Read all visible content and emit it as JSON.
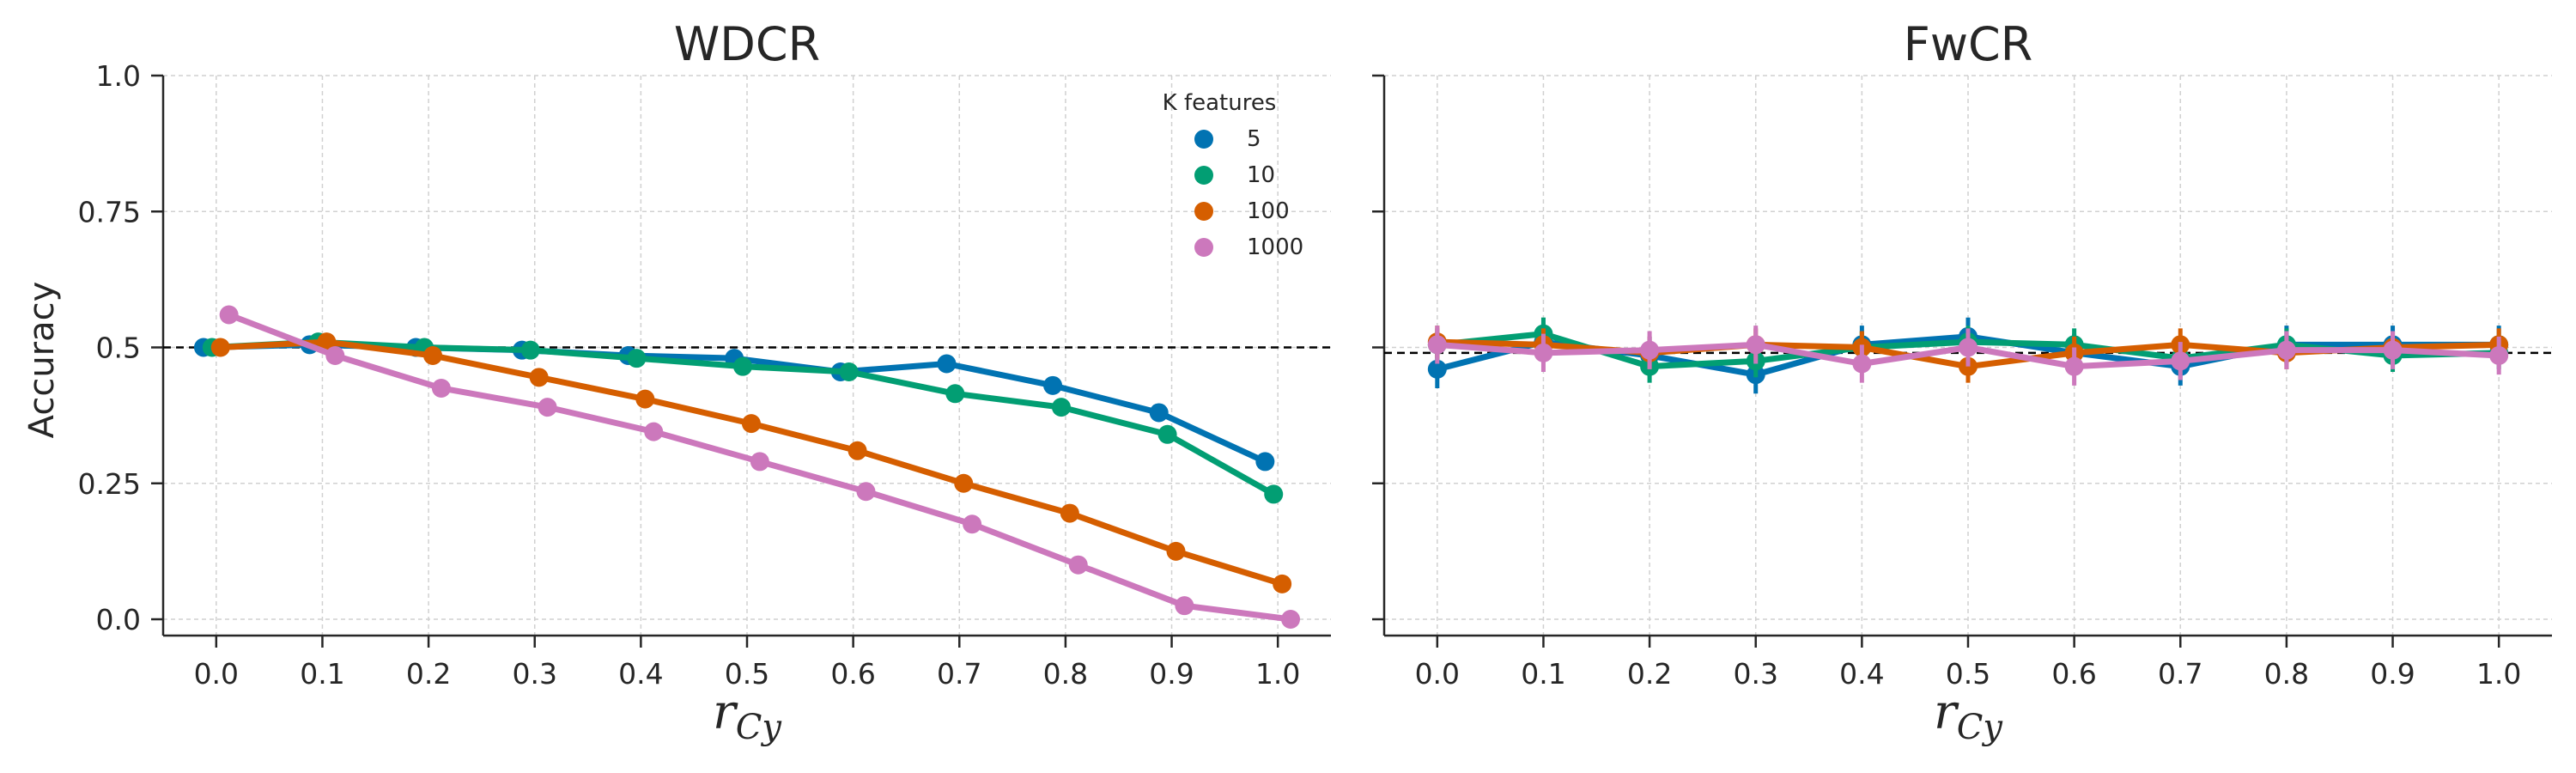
{
  "chart_data": [
    {
      "type": "line",
      "title": "WDCR",
      "xlabel": "r_Cy",
      "ylabel": "Accuracy",
      "x": [
        0.0,
        0.1,
        0.2,
        0.3,
        0.4,
        0.5,
        0.6,
        0.7,
        0.8,
        0.9,
        1.0
      ],
      "xlim": [
        -0.05,
        1.05
      ],
      "ylim": [
        -0.03,
        1.0
      ],
      "yticks": [
        0.0,
        0.25,
        0.5,
        0.75,
        1.0
      ],
      "ytick_labels": [
        "0.0",
        "0.25",
        "0.5",
        "0.75",
        "1.0"
      ],
      "xtick_labels": [
        "0.0",
        "0.1",
        "0.2",
        "0.3",
        "0.4",
        "0.5",
        "0.6",
        "0.7",
        "0.8",
        "0.9",
        "1.0"
      ],
      "reference_line": 0.5,
      "grid": true,
      "legend": {
        "title": "K features",
        "placement": "top-right"
      },
      "series": [
        {
          "name": "5",
          "color": "#0173b2",
          "values": [
            0.5,
            0.505,
            0.5,
            0.495,
            0.485,
            0.48,
            0.455,
            0.47,
            0.43,
            0.38,
            0.29
          ]
        },
        {
          "name": "10",
          "color": "#029e73",
          "values": [
            0.5,
            0.51,
            0.5,
            0.495,
            0.48,
            0.465,
            0.455,
            0.415,
            0.39,
            0.34,
            0.23
          ]
        },
        {
          "name": "100",
          "color": "#d55e00",
          "values": [
            0.5,
            0.51,
            0.485,
            0.445,
            0.405,
            0.36,
            0.31,
            0.25,
            0.195,
            0.125,
            0.065
          ]
        },
        {
          "name": "1000",
          "color": "#cc78bc",
          "values": [
            0.56,
            0.485,
            0.425,
            0.39,
            0.345,
            0.29,
            0.235,
            0.175,
            0.1,
            0.025,
            0.0
          ]
        }
      ]
    },
    {
      "type": "line",
      "title": "FwCR",
      "xlabel": "r_Cy",
      "ylabel": "",
      "x": [
        0.0,
        0.1,
        0.2,
        0.3,
        0.4,
        0.5,
        0.6,
        0.7,
        0.8,
        0.9,
        1.0
      ],
      "xlim": [
        -0.05,
        1.05
      ],
      "ylim": [
        -0.03,
        1.0
      ],
      "xtick_labels": [
        "0.0",
        "0.1",
        "0.2",
        "0.3",
        "0.4",
        "0.5",
        "0.6",
        "0.7",
        "0.8",
        "0.9",
        "1.0"
      ],
      "reference_line": 0.49,
      "grid": true,
      "series": [
        {
          "name": "5",
          "color": "#0173b2",
          "values": [
            0.46,
            0.51,
            0.485,
            0.45,
            0.505,
            0.52,
            0.49,
            0.465,
            0.505,
            0.505,
            0.505
          ],
          "err": [
            0.035,
            0.035,
            0.035,
            0.035,
            0.035,
            0.035,
            0.035,
            0.035,
            0.035,
            0.035,
            0.035
          ]
        },
        {
          "name": "10",
          "color": "#029e73",
          "values": [
            0.505,
            0.525,
            0.465,
            0.475,
            0.5,
            0.51,
            0.505,
            0.48,
            0.505,
            0.485,
            0.49
          ],
          "err": [
            0.03,
            0.03,
            0.03,
            0.03,
            0.03,
            0.03,
            0.03,
            0.03,
            0.03,
            0.03,
            0.03
          ]
        },
        {
          "name": "100",
          "color": "#d55e00",
          "values": [
            0.51,
            0.505,
            0.49,
            0.505,
            0.5,
            0.465,
            0.49,
            0.505,
            0.49,
            0.5,
            0.505
          ],
          "err": [
            0.03,
            0.03,
            0.03,
            0.03,
            0.03,
            0.03,
            0.03,
            0.03,
            0.03,
            0.03,
            0.03
          ]
        },
        {
          "name": "1000",
          "color": "#cc78bc",
          "values": [
            0.505,
            0.49,
            0.495,
            0.505,
            0.47,
            0.5,
            0.465,
            0.475,
            0.495,
            0.495,
            0.485
          ],
          "err": [
            0.035,
            0.035,
            0.035,
            0.035,
            0.035,
            0.035,
            0.035,
            0.035,
            0.035,
            0.035,
            0.035
          ]
        }
      ]
    }
  ]
}
